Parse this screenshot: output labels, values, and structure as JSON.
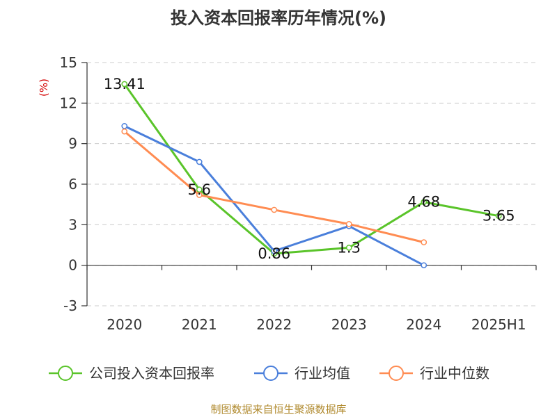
{
  "chart_data": {
    "type": "line",
    "title": "投入资本回报率历年情况(%)",
    "y_unit": "(%)",
    "categories": [
      "2020",
      "2021",
      "2022",
      "2023",
      "2024",
      "2025H1"
    ],
    "ylim": [
      -3,
      15
    ],
    "y_ticks": [
      -3,
      0,
      3,
      6,
      9,
      12,
      15
    ],
    "grid": true,
    "legend_position": "bottom",
    "series": [
      {
        "name": "公司投入资本回报率",
        "color": "#5ac42a",
        "values": [
          13.41,
          5.6,
          0.86,
          1.3,
          4.68,
          3.65
        ],
        "labels": [
          "13.41",
          "5.6",
          "0.86",
          "1.3",
          "4.68",
          "3.65"
        ]
      },
      {
        "name": "行业均值",
        "color": "#4a7fdb",
        "values": [
          10.3,
          7.65,
          1.05,
          2.9,
          0.0,
          null
        ]
      },
      {
        "name": "行业中位数",
        "color": "#ff8c52",
        "values": [
          9.9,
          5.2,
          4.1,
          3.05,
          1.7,
          null
        ]
      }
    ],
    "source": "制图数据来自恒生聚源数据库"
  }
}
